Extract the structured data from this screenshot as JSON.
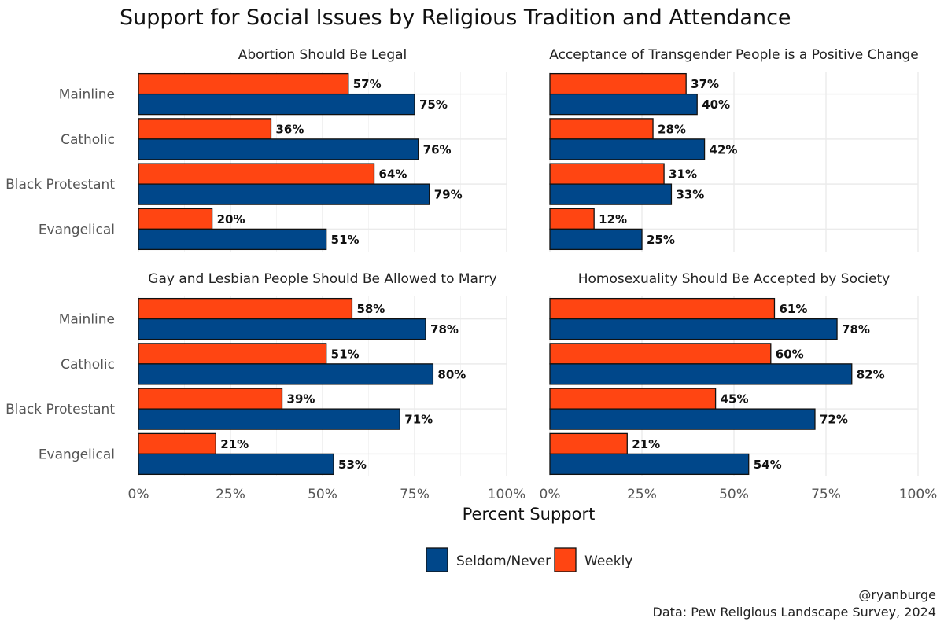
{
  "chart_data": {
    "type": "bar",
    "orientation": "horizontal",
    "title": "Support for Social Issues by Religious Tradition and Attendance",
    "xlabel": "Percent Support",
    "xlim": [
      0,
      100
    ],
    "ticks": [
      0,
      25,
      50,
      75,
      100
    ],
    "tick_labels": [
      "0%",
      "25%",
      "50%",
      "75%",
      "100%"
    ],
    "categories": [
      "Mainline",
      "Catholic",
      "Black Protestant",
      "Evangelical"
    ],
    "series_names": [
      "Seldom/Never",
      "Weekly"
    ],
    "colors": {
      "Seldom/Never": "#00478a",
      "Weekly": "#ff4512"
    },
    "legend": {
      "position": "bottom",
      "items": [
        {
          "label": "Seldom/Never",
          "color": "#00478a"
        },
        {
          "label": "Weekly",
          "color": "#ff4512"
        }
      ]
    },
    "facets": [
      {
        "title": "Abortion Should Be Legal",
        "series": [
          {
            "name": "Weekly",
            "values": [
              57,
              36,
              64,
              20
            ],
            "labels": [
              "57%",
              "36%",
              "64%",
              "20%"
            ]
          },
          {
            "name": "Seldom/Never",
            "values": [
              75,
              76,
              79,
              51
            ],
            "labels": [
              "75%",
              "76%",
              "79%",
              "51%"
            ]
          }
        ]
      },
      {
        "title": "Acceptance of Transgender People is a Positive Change",
        "series": [
          {
            "name": "Weekly",
            "values": [
              37,
              28,
              31,
              12
            ],
            "labels": [
              "37%",
              "28%",
              "31%",
              "12%"
            ]
          },
          {
            "name": "Seldom/Never",
            "values": [
              40,
              42,
              33,
              25
            ],
            "labels": [
              "40%",
              "42%",
              "33%",
              "25%"
            ]
          }
        ]
      },
      {
        "title": "Gay and Lesbian People Should Be Allowed to Marry",
        "series": [
          {
            "name": "Weekly",
            "values": [
              58,
              51,
              39,
              21
            ],
            "labels": [
              "58%",
              "51%",
              "39%",
              "21%"
            ]
          },
          {
            "name": "Seldom/Never",
            "values": [
              78,
              80,
              71,
              53
            ],
            "labels": [
              "78%",
              "80%",
              "71%",
              "53%"
            ]
          }
        ]
      },
      {
        "title": "Homosexuality Should Be Accepted by Society",
        "series": [
          {
            "name": "Weekly",
            "values": [
              61,
              60,
              45,
              21
            ],
            "labels": [
              "61%",
              "60%",
              "45%",
              "21%"
            ]
          },
          {
            "name": "Seldom/Never",
            "values": [
              78,
              82,
              72,
              54
            ],
            "labels": [
              "78%",
              "82%",
              "72%",
              "54%"
            ]
          }
        ]
      }
    ]
  },
  "caption": {
    "handle": "@ryanburge",
    "source": "Data: Pew Religious Landscape Survey, 2024"
  }
}
